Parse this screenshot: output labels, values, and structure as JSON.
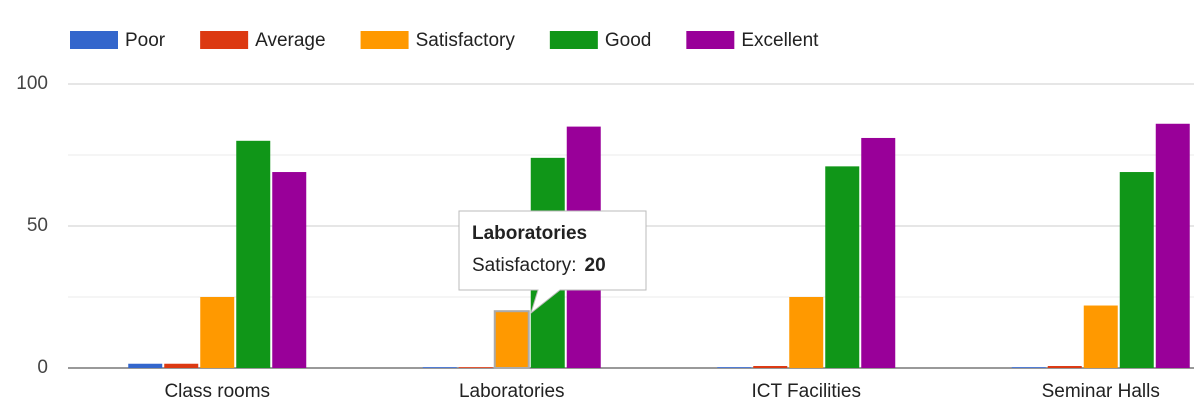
{
  "chart_data": {
    "type": "bar",
    "categories": [
      "Class rooms",
      "Laboratories",
      "ICT Facilities",
      "Seminar Halls"
    ],
    "series": [
      {
        "name": "Poor",
        "color": "#3366cc",
        "values": [
          1.5,
          0.3,
          0.3,
          0.3
        ]
      },
      {
        "name": "Average",
        "color": "#dc3912",
        "values": [
          1.5,
          0.3,
          0.7,
          0.7
        ]
      },
      {
        "name": "Satisfactory",
        "color": "#ff9900",
        "values": [
          25,
          20,
          25,
          22
        ]
      },
      {
        "name": "Good",
        "color": "#109618",
        "values": [
          80,
          74,
          71,
          69
        ]
      },
      {
        "name": "Excellent",
        "color": "#990099",
        "values": [
          69,
          85,
          81,
          86
        ]
      }
    ],
    "ylim": [
      0,
      100
    ],
    "yticks": [
      0,
      50,
      100
    ],
    "minor_yticks": [
      25,
      75
    ],
    "grid": true,
    "legend": "top",
    "tooltip": {
      "title": "Laboratories",
      "label": "Satisfactory:",
      "value": 20
    }
  }
}
